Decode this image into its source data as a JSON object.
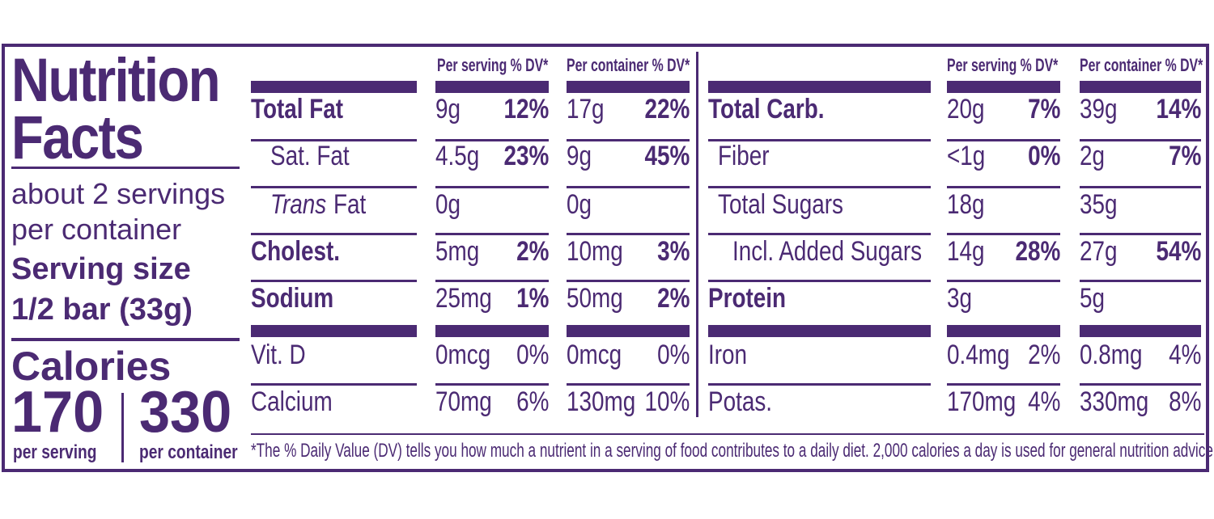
{
  "title_line1": "Nutrition",
  "title_line2": "Facts",
  "servings_line1": "about 2 servings",
  "servings_line2": "per container",
  "serving_size_label": "Serving size",
  "serving_size_value": "1/2 bar (33g)",
  "calories_label": "Calories",
  "calories_per_serving": "170",
  "calories_per_container": "330",
  "per_serving_label": "per serving",
  "per_container_label": "per container",
  "left_headers": {
    "serving": "Per serving % DV*",
    "container": "Per container % DV*"
  },
  "right_headers": {
    "serving": "Per serving % DV*",
    "container": "Per container % DV*"
  },
  "left_rows": [
    {
      "name": "Total Fat",
      "s_amt": "9g",
      "s_pct": "12%",
      "c_amt": "17g",
      "c_pct": "22%"
    },
    {
      "name": "Sat. Fat",
      "s_amt": "4.5g",
      "s_pct": "23%",
      "c_amt": "9g",
      "c_pct": "45%"
    },
    {
      "name_italic": "Trans",
      "name_rest": " Fat",
      "s_amt": "0g",
      "s_pct": "",
      "c_amt": "0g",
      "c_pct": ""
    },
    {
      "name": "Cholest.",
      "s_amt": "5mg",
      "s_pct": "2%",
      "c_amt": "10mg",
      "c_pct": "3%"
    },
    {
      "name": "Sodium",
      "s_amt": "25mg",
      "s_pct": "1%",
      "c_amt": "50mg",
      "c_pct": "2%"
    },
    {
      "name": "Vit. D",
      "s_amt": "0mcg",
      "s_pct": "0%",
      "c_amt": "0mcg",
      "c_pct": "0%"
    },
    {
      "name": "Calcium",
      "s_amt": "70mg",
      "s_pct": "6%",
      "c_amt": "130mg",
      "c_pct": "10%"
    }
  ],
  "right_rows": [
    {
      "name": "Total Carb.",
      "s_amt": "20g",
      "s_pct": "7%",
      "c_amt": "39g",
      "c_pct": "14%"
    },
    {
      "name": "Fiber",
      "s_amt": "<1g",
      "s_pct": "0%",
      "c_amt": "2g",
      "c_pct": "7%"
    },
    {
      "name": "Total Sugars",
      "s_amt": "18g",
      "s_pct": "",
      "c_amt": "35g",
      "c_pct": ""
    },
    {
      "name": "Incl. Added Sugars",
      "s_amt": "14g",
      "s_pct": "28%",
      "c_amt": "27g",
      "c_pct": "54%"
    },
    {
      "name": "Protein",
      "s_amt": "3g",
      "s_pct": "",
      "c_amt": "5g",
      "c_pct": ""
    },
    {
      "name": "Iron",
      "s_amt": "0.4mg",
      "s_pct": "2%",
      "c_amt": "0.8mg",
      "c_pct": "4%"
    },
    {
      "name": "Potas.",
      "s_amt": "170mg",
      "s_pct": "4%",
      "c_amt": "330mg",
      "c_pct": "8%"
    }
  ],
  "footnote": "*The % Daily Value (DV) tells you how much a nutrient in a serving of food contributes to a daily diet. 2,000 calories a day is used for general nutrition advice.",
  "colors": {
    "ink": "#4b2a73",
    "background": "#ffffff"
  }
}
